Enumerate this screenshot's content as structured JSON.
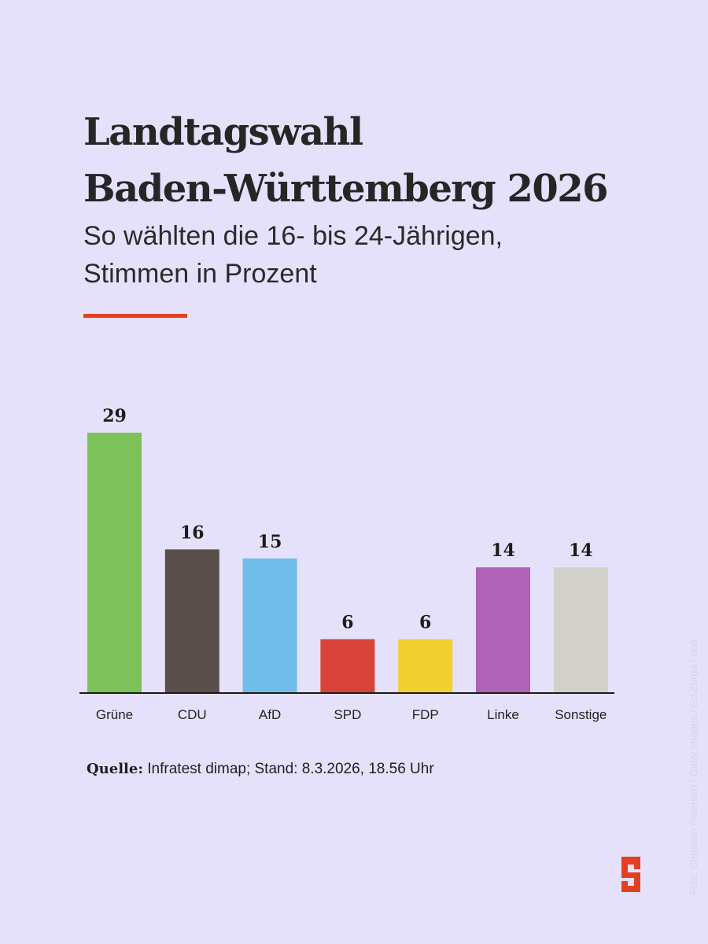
{
  "title_lines": [
    "Landtagswahl",
    "Baden-Württemberg 2026"
  ],
  "subtitle_lines": [
    "So wählten die 16- bis 24-Jährigen,",
    "Stimmen in Prozent"
  ],
  "source": {
    "label": "Quelle:",
    "text": " Infratest dimap; Stand: 8.3.2026, 18.56 Uhr"
  },
  "credit": "Foto: Christian Petersen / Getty Images / Ed Zurga / dpa",
  "logo_icon": "s-logo-icon",
  "colors": {
    "background": "#e6e1fb",
    "accent": "#e2401f",
    "axis": "#1a1a1a"
  },
  "chart_data": {
    "type": "bar",
    "title": "Landtagswahl Baden-Württemberg 2026",
    "subtitle": "So wählten die 16- bis 24-Jährigen, Stimmen in Prozent",
    "xlabel": "",
    "ylabel": "",
    "ylim": [
      0,
      29
    ],
    "grid": false,
    "categories": [
      "Grüne",
      "CDU",
      "AfD",
      "SPD",
      "FDP",
      "Linke",
      "Sonstige"
    ],
    "values": [
      29,
      16,
      15,
      6,
      6,
      14,
      14
    ],
    "colors": [
      "#7dc15a",
      "#5a4f4a",
      "#6fbde8",
      "#d8433a",
      "#f2d030",
      "#b062b7",
      "#d2d1c9"
    ]
  }
}
